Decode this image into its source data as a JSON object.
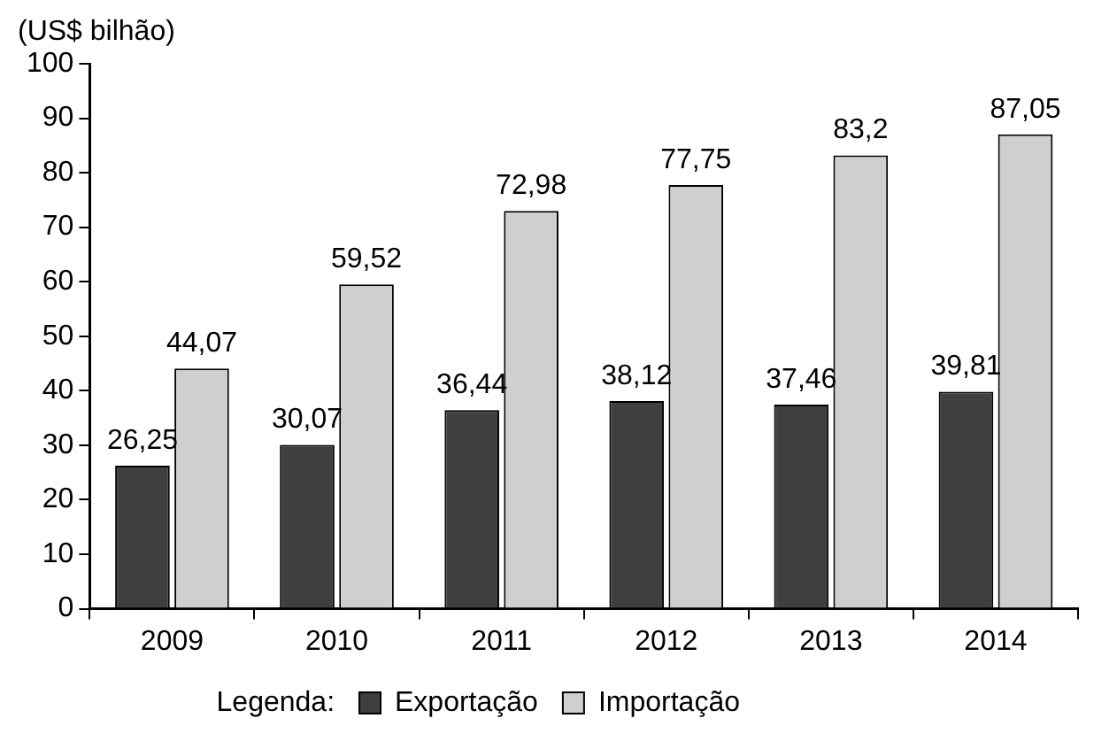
{
  "chart_data": {
    "type": "bar",
    "ylabel": "(US$ bilhão)",
    "legend_title": "Legenda:",
    "categories": [
      "2009",
      "2010",
      "2011",
      "2012",
      "2013",
      "2014"
    ],
    "series": [
      {
        "name": "Exportação",
        "color": "#3f3f3f",
        "values": [
          26.25,
          30.07,
          36.44,
          38.12,
          37.46,
          39.81
        ],
        "value_labels": [
          "26,25",
          "30,07",
          "36,44",
          "38,12",
          "37,46",
          "39,81"
        ]
      },
      {
        "name": "Importação",
        "color": "#cfcfcf",
        "values": [
          44.07,
          59.52,
          72.98,
          77.75,
          83.2,
          87.05
        ],
        "value_labels": [
          "44,07",
          "59,52",
          "72,98",
          "77,75",
          "83,2",
          "87,05"
        ]
      }
    ],
    "ylim": [
      0,
      100
    ],
    "yticks": [
      0,
      10,
      20,
      30,
      40,
      50,
      60,
      70,
      80,
      90,
      100
    ],
    "grid": false,
    "legend": "bottom"
  }
}
